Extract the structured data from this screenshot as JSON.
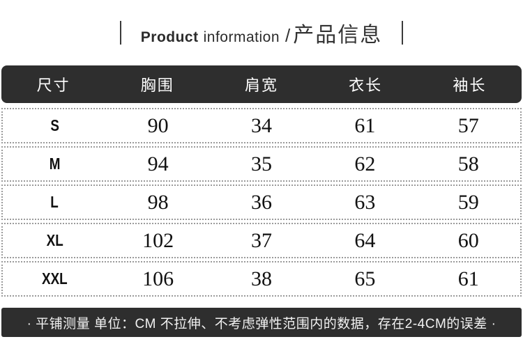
{
  "title": {
    "en_bold": "Product",
    "en_rest": "information",
    "slash": "/",
    "zh": "产品信息"
  },
  "table": {
    "columns": [
      "尺寸",
      "胸围",
      "肩宽",
      "衣长",
      "袖长"
    ],
    "rows": [
      {
        "size": "S",
        "values": [
          "90",
          "34",
          "61",
          "57"
        ]
      },
      {
        "size": "M",
        "values": [
          "94",
          "35",
          "62",
          "58"
        ]
      },
      {
        "size": "L",
        "values": [
          "98",
          "36",
          "63",
          "59"
        ]
      },
      {
        "size": "XL",
        "values": [
          "102",
          "37",
          "64",
          "60"
        ]
      },
      {
        "size": "XXL",
        "values": [
          "106",
          "38",
          "65",
          "61"
        ]
      }
    ]
  },
  "note": {
    "text": "· 平铺测量  单位：CM  不拉伸、不考虑弹性范围内的数据，存在2-4CM的误差 ·"
  },
  "colors": {
    "bar_dark": "#2e2e2e",
    "title_text": "#2b2b2b",
    "dotted_border": "#9a9a9a",
    "header_text": "#ffffff"
  },
  "chart_data": {
    "type": "table",
    "title": "Product information / 产品信息",
    "columns": [
      "尺寸",
      "胸围",
      "肩宽",
      "衣长",
      "袖长"
    ],
    "rows": [
      [
        "S",
        90,
        34,
        61,
        57
      ],
      [
        "M",
        94,
        35,
        62,
        58
      ],
      [
        "L",
        98,
        36,
        63,
        59
      ],
      [
        "XL",
        102,
        37,
        64,
        60
      ],
      [
        "XXL",
        106,
        38,
        65,
        61
      ]
    ],
    "unit": "CM",
    "footnote": "平铺测量 单位：CM 不拉伸、不考虑弹性范围内的数据，存在2-4CM的误差"
  }
}
